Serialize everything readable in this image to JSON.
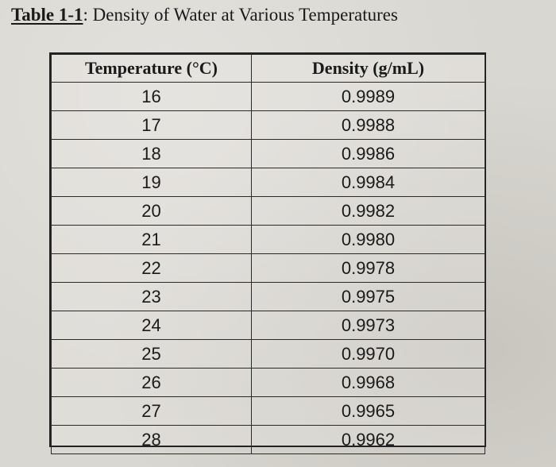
{
  "title": {
    "label": "Table 1-1",
    "text": ": Density of Water at Various Temperatures"
  },
  "table": {
    "headers": [
      "Temperature (°C)",
      "Density (g/mL)"
    ],
    "rows": [
      [
        "16",
        "0.9989"
      ],
      [
        "17",
        "0.9988"
      ],
      [
        "18",
        "0.9986"
      ],
      [
        "19",
        "0.9984"
      ],
      [
        "20",
        "0.9982"
      ],
      [
        "21",
        "0.9980"
      ],
      [
        "22",
        "0.9978"
      ],
      [
        "23",
        "0.9975"
      ],
      [
        "24",
        "0.9973"
      ],
      [
        "25",
        "0.9970"
      ],
      [
        "26",
        "0.9968"
      ],
      [
        "27",
        "0.9965"
      ],
      [
        "28",
        "0.9962"
      ]
    ]
  }
}
